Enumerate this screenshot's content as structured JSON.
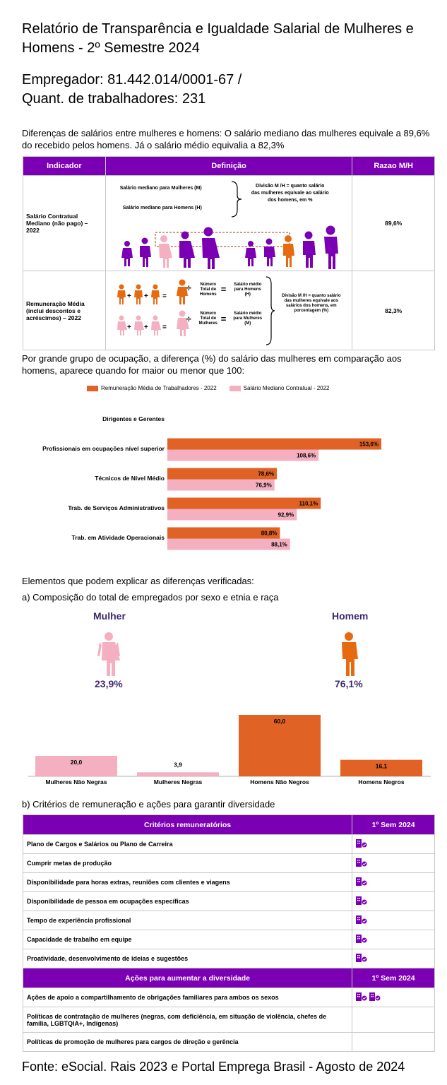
{
  "title": "Relatório de Transparência e Igualdade Salarial de Mulheres e Homens - 2º Semestre 2024",
  "employer_line": "Empregador: 81.442.014/0001-67    /",
  "workers_line": "Quant. de trabalhadores: 231",
  "intro": "Diferenças de salários entre mulheres e homens: O salário mediano das mulheres equivale a 89,6% do recebido pelos homens. Já o salário médio equivalia a 82,3%",
  "table1": {
    "headers": [
      "Indicador",
      "Definição",
      "Razao M/H"
    ],
    "row1": {
      "indicator": "Salário Contratual Mediano (não pago) – 2022",
      "def_women": "Salário mediano para Mulheres (M)",
      "def_men": "Salário mediano para Homens (H)",
      "def_division": "Divisão M /H = quanto salário das mulheres equivale ao salário dos homens, em %",
      "value": "89,6%"
    },
    "row2": {
      "indicator": "Remuneração Média (inclui descontos e acréscimos) – 2022",
      "num_men": "Número Total de Homens",
      "num_women": "Número Total de Mulheres",
      "avg_men": "Salário médio para Homens (H)",
      "avg_women": "Salário médio para Mulheres (M)",
      "def_division": "Divisão M /H = quanto salário das mulheres equivale aos salários dos homens, em porcentagem (%)",
      "value": "82,3%"
    }
  },
  "occupation_intro": "Por grande grupo de ocupação, a diferença (%) do salário das mulheres em comparação aos homens, aparece quando for maior ou menor que 100:",
  "chart_data": [
    {
      "type": "bar",
      "orientation": "horizontal",
      "categories": [
        "Dirigentes e Gerentes",
        "Profissionais em ocupações nível superior",
        "Técnicos de Nível Médio",
        "Trab. de Serviços Administrativos",
        "Trab. em Atividade Operacionais"
      ],
      "series": [
        {
          "name": "Remuneração Média de Trabalhadores - 2022",
          "color": "#E06224",
          "values": [
            null,
            153.6,
            78.6,
            110.1,
            80.8
          ],
          "labels": [
            "",
            "153,6%",
            "78,6%",
            "110,1%",
            "80,8%"
          ]
        },
        {
          "name": "Salário Mediano Contratual - 2022",
          "color": "#F4AFC0",
          "values": [
            null,
            108.6,
            76.9,
            92.9,
            88.1
          ],
          "labels": [
            "",
            "108,6%",
            "76,9%",
            "92,9%",
            "88,1%"
          ]
        }
      ],
      "legend": "top"
    },
    {
      "type": "bar",
      "categories": [
        "Mulheres Não Negras",
        "Mulheres Negras",
        "Homens Não Negros",
        "Homens Negros"
      ],
      "values": [
        20.0,
        3.9,
        60.0,
        16.1
      ],
      "labels": [
        "20,0",
        "3,9",
        "60,0",
        "16,1"
      ],
      "colors": [
        "#F4AFC0",
        "#F4AFC0",
        "#E06224",
        "#E06224"
      ]
    }
  ],
  "elements_intro": "Elementos que podem explicar as diferenças verificadas:",
  "composition_title": "a) Composição do total de empregados por sexo e etnia e raça",
  "woman_label": "Mulher",
  "woman_pct": "23,9%",
  "man_label": "Homem",
  "man_pct": "76,1%",
  "criteria_title": "b) Critérios de remuneração e ações para garantir diversidade",
  "table2": {
    "header_criteria": "Critérios remuneratórios",
    "header_sem": "1º Sem 2024",
    "criteria": [
      {
        "label": "Plano de Cargos e Salários ou Plano de Carreira",
        "icons": 1
      },
      {
        "label": "Cumprir metas de produção",
        "icons": 1
      },
      {
        "label": "Disponibilidade para horas extras, reuniões com clientes e viagens",
        "icons": 1
      },
      {
        "label": "Disponibilidade de pessoa em ocupações específicas",
        "icons": 1
      },
      {
        "label": "Tempo de experiência profissional",
        "icons": 1
      },
      {
        "label": "Capacidade de trabalho em equipe",
        "icons": 1
      },
      {
        "label": "Proatividade, desenvolvimento de ideias e sugestões",
        "icons": 1
      }
    ],
    "header_actions": "Ações para aumentar a diversidade",
    "header_sem2": "1º Sem 2024",
    "actions": [
      {
        "label": "Ações de apoio a compartilhamento de obrigações familiares para ambos os sexos",
        "icons": 2
      },
      {
        "label": "Políticas de contratação de mulheres (negras, com deficiência, em situação de violência, chefes de família, LGBTQIA+, Indígenas)",
        "icons": 0
      },
      {
        "label": "Políticas de promoção de mulheres para cargos de direção e gerência",
        "icons": 0
      }
    ],
    "icon_name": "building-check-icon",
    "icon_color": "#7B00B4"
  },
  "source": "Fonte: eSocial. Rais 2023 e Portal Emprega Brasil - Agosto de 2024"
}
